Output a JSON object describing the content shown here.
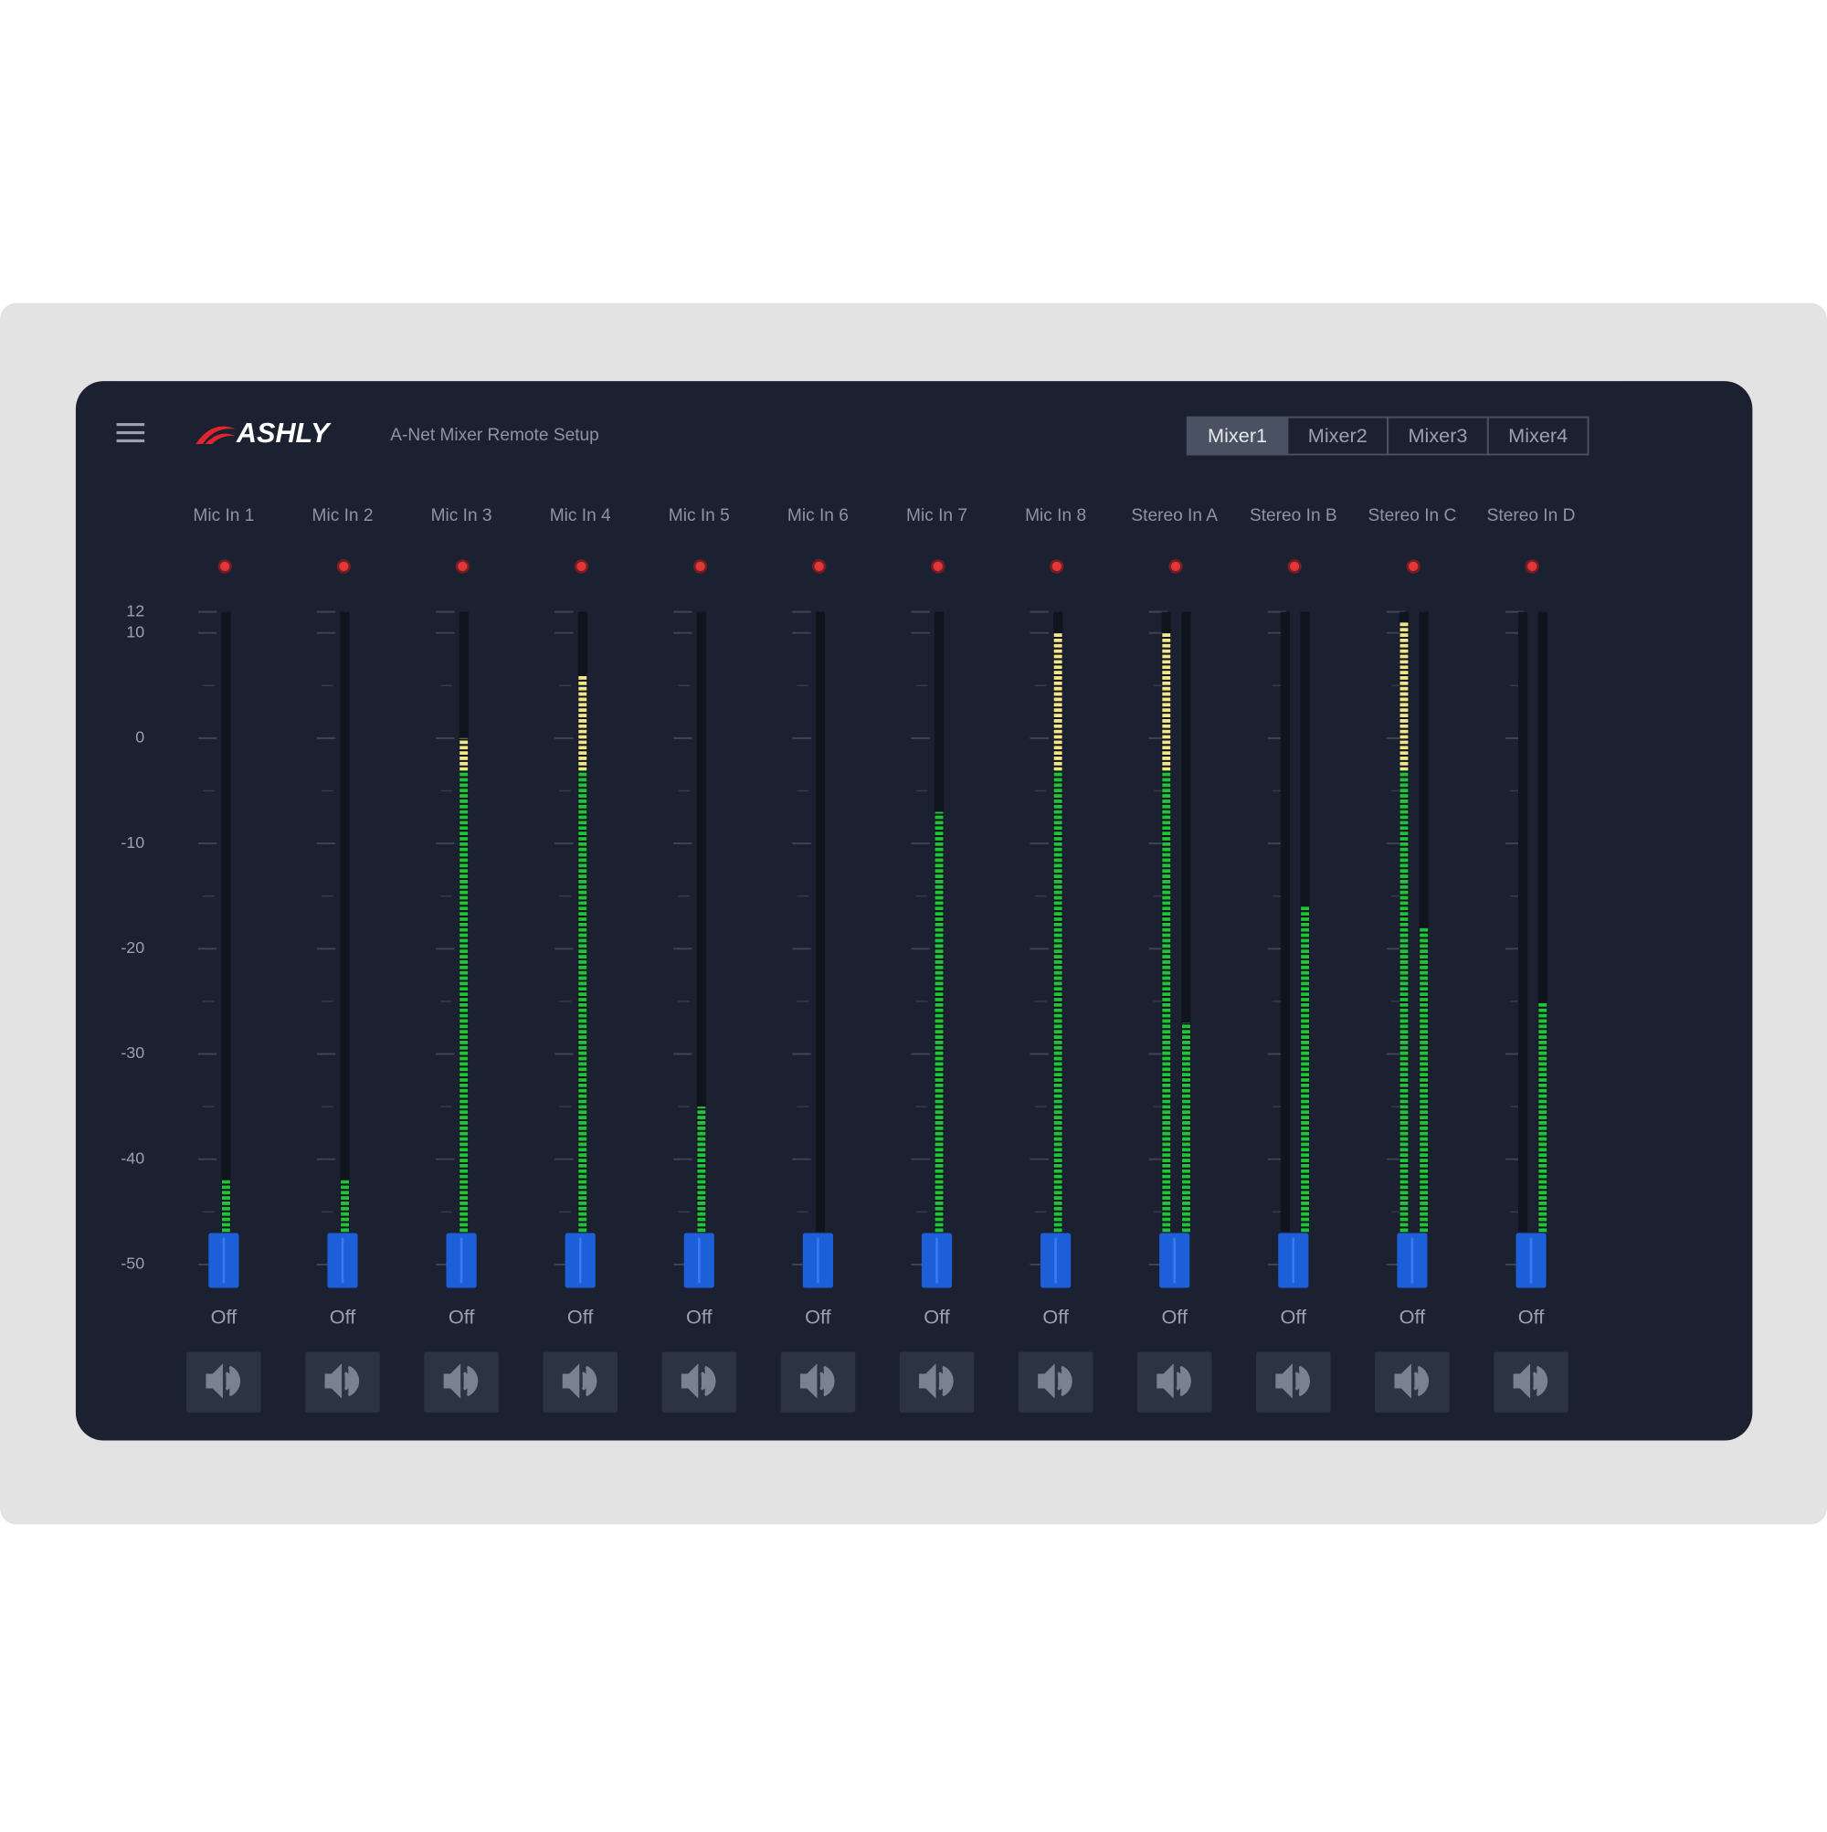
{
  "header": {
    "logo": "ASHLY",
    "title": "A-Net Mixer Remote Setup",
    "tabs": [
      {
        "label": "Mixer1",
        "selected": true
      },
      {
        "label": "Mixer2",
        "selected": false
      },
      {
        "label": "Mixer3",
        "selected": false
      },
      {
        "label": "Mixer4",
        "selected": false
      }
    ]
  },
  "scale": {
    "ticks": [
      12,
      10,
      0,
      -10,
      -20,
      -30,
      -40,
      -50
    ]
  },
  "channels": [
    {
      "name": "Mic In 1",
      "fader": "Off",
      "levels": [
        -42
      ]
    },
    {
      "name": "Mic In 2",
      "fader": "Off",
      "levels": [
        -42
      ]
    },
    {
      "name": "Mic In 3",
      "fader": "Off",
      "levels": [
        0
      ]
    },
    {
      "name": "Mic In 4",
      "fader": "Off",
      "levels": [
        6
      ]
    },
    {
      "name": "Mic In 5",
      "fader": "Off",
      "levels": [
        -35
      ]
    },
    {
      "name": "Mic In 6",
      "fader": "Off",
      "levels": [
        null
      ]
    },
    {
      "name": "Mic In 7",
      "fader": "Off",
      "levels": [
        -7
      ]
    },
    {
      "name": "Mic In 8",
      "fader": "Off",
      "levels": [
        10
      ]
    },
    {
      "name": "Stereo In A",
      "fader": "Off",
      "levels": [
        10,
        -27
      ]
    },
    {
      "name": "Stereo In B",
      "fader": "Off",
      "levels": [
        null,
        -16
      ]
    },
    {
      "name": "Stereo In C",
      "fader": "Off",
      "levels": [
        11,
        -18
      ]
    },
    {
      "name": "Stereo In D",
      "fader": "Off",
      "levels": [
        null,
        -25
      ]
    }
  ]
}
